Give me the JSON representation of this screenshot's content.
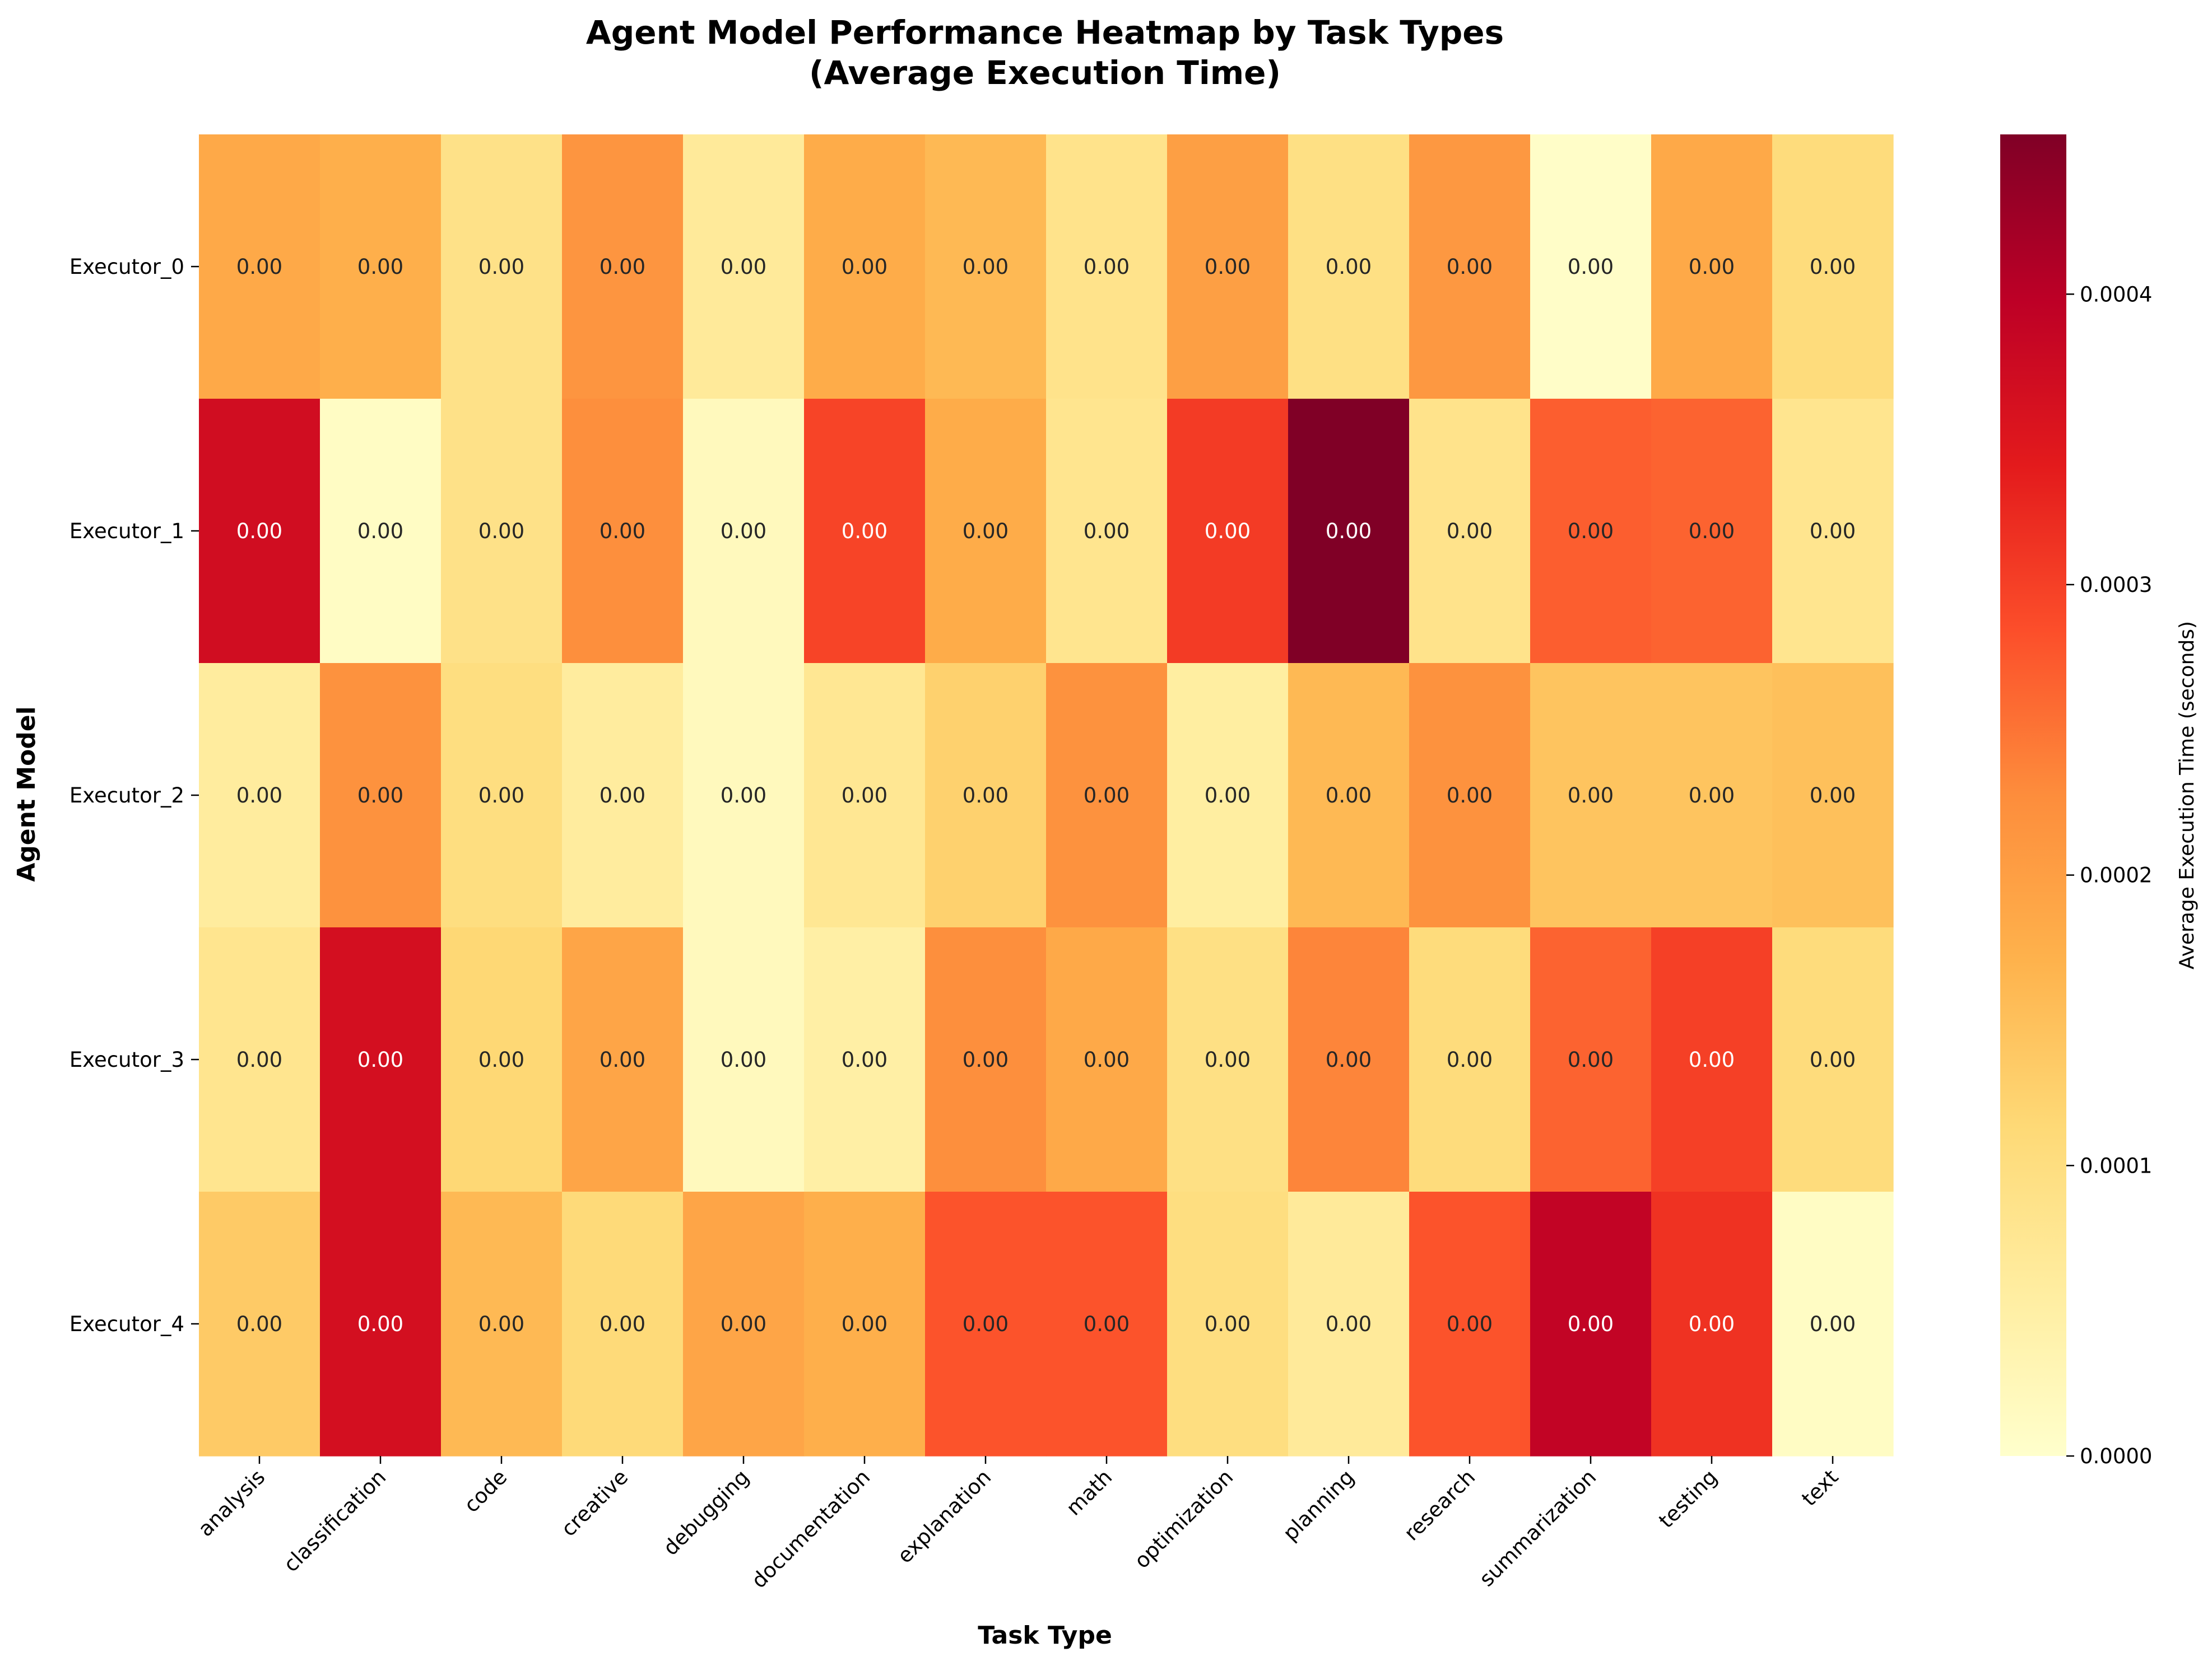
{
  "chart_data": {
    "type": "heatmap",
    "title_line1": "Agent Model Performance Heatmap by Task Types",
    "title_line2": "(Average Execution Time)",
    "xlabel": "Task Type",
    "ylabel": "Agent Model",
    "colorbar_label": "Average Execution Time (seconds)",
    "colormap": "YlOrRd",
    "x_categories": [
      "analysis",
      "classification",
      "code",
      "creative",
      "debugging",
      "documentation",
      "explanation",
      "math",
      "optimization",
      "planning",
      "research",
      "summarization",
      "testing",
      "text"
    ],
    "y_categories": [
      "Executor_0",
      "Executor_1",
      "Executor_2",
      "Executor_3",
      "Executor_4"
    ],
    "values": [
      [
        0.000185,
        0.000175,
        9e-05,
        0.000215,
        6.5e-05,
        0.00018,
        0.00016,
        8.5e-05,
        0.0002,
        9.5e-05,
        0.00021,
        5e-06,
        0.000185,
        0.000105
      ],
      [
        0.00037,
        1e-05,
        9e-05,
        0.000225,
        2e-05,
        0.000295,
        0.00018,
        8e-05,
        0.000305,
        0.000455,
        8.5e-05,
        0.00027,
        0.000265,
        8e-05
      ],
      [
        6e-05,
        0.00022,
        0.0001,
        6e-05,
        2e-05,
        7.5e-05,
        0.000125,
        0.00022,
        5.5e-05,
        0.00016,
        0.00022,
        0.000145,
        0.000145,
        0.00015
      ],
      [
        8e-05,
        0.000365,
        0.000115,
        0.00019,
        2e-05,
        5e-05,
        0.000225,
        0.000185,
        9.5e-05,
        0.000235,
        0.000105,
        0.000265,
        0.0003,
        0.000105
      ],
      [
        0.000135,
        0.000365,
        0.00016,
        0.00011,
        0.00019,
        0.000175,
        0.00028,
        0.00028,
        0.0001,
        6.5e-05,
        0.00028,
        0.00039,
        0.000315,
        1e-05
      ]
    ],
    "cell_labels": [
      [
        "0.00",
        "0.00",
        "0.00",
        "0.00",
        "0.00",
        "0.00",
        "0.00",
        "0.00",
        "0.00",
        "0.00",
        "0.00",
        "0.00",
        "0.00",
        "0.00"
      ],
      [
        "0.00",
        "0.00",
        "0.00",
        "0.00",
        "0.00",
        "0.00",
        "0.00",
        "0.00",
        "0.00",
        "0.00",
        "0.00",
        "0.00",
        "0.00",
        "0.00"
      ],
      [
        "0.00",
        "0.00",
        "0.00",
        "0.00",
        "0.00",
        "0.00",
        "0.00",
        "0.00",
        "0.00",
        "0.00",
        "0.00",
        "0.00",
        "0.00",
        "0.00"
      ],
      [
        "0.00",
        "0.00",
        "0.00",
        "0.00",
        "0.00",
        "0.00",
        "0.00",
        "0.00",
        "0.00",
        "0.00",
        "0.00",
        "0.00",
        "0.00",
        "0.00"
      ],
      [
        "0.00",
        "0.00",
        "0.00",
        "0.00",
        "0.00",
        "0.00",
        "0.00",
        "0.00",
        "0.00",
        "0.00",
        "0.00",
        "0.00",
        "0.00",
        "0.00"
      ]
    ],
    "vmin": 0.0,
    "vmax": 0.000455,
    "colorbar_ticks": [
      "0.0000",
      "0.0001",
      "0.0002",
      "0.0003",
      "0.0004"
    ],
    "colorbar_tick_values": [
      0.0,
      0.0001,
      0.0002,
      0.0003,
      0.0004
    ]
  }
}
